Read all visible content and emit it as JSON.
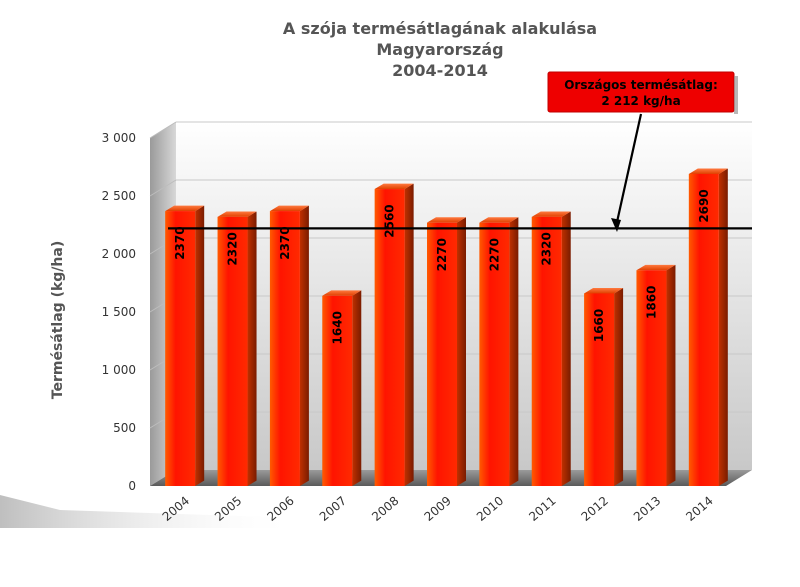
{
  "chart_data": {
    "type": "bar",
    "title": [
      "A szója termésátlagának alakulása",
      "Magyarország",
      "2004-2014"
    ],
    "xlabel": "",
    "ylabel": "Termésátlag (kg/ha)",
    "categories": [
      "2004",
      "2005",
      "2006",
      "2007",
      "2008",
      "2009",
      "2010",
      "2011",
      "2012",
      "2013",
      "2014"
    ],
    "values": [
      2370,
      2320,
      2370,
      1640,
      2560,
      2270,
      2270,
      2320,
      1660,
      1860,
      2690
    ],
    "value_labels": [
      "2370",
      "2320",
      "2370",
      "1640",
      "2560",
      "2270",
      "2270",
      "2320",
      "1660",
      "1860",
      "2690"
    ],
    "ylim": [
      0,
      3000
    ],
    "yticks": [
      0,
      500,
      1000,
      1500,
      2000,
      2500,
      3000
    ],
    "ytick_labels": [
      "0",
      "500",
      "1 000",
      "1 500",
      "2 000",
      "2 500",
      "3 000"
    ],
    "grid": true,
    "reference_line": {
      "value": 2212,
      "label_lines": [
        "Országos termésátlag:",
        "2 212 kg/ha"
      ]
    },
    "colors": {
      "bar": "#ff1a00",
      "bar_edge": "#ff6a00",
      "bar_side": "#a02000",
      "annotation_box": "#ee0000",
      "reference_line": "#000000"
    }
  }
}
